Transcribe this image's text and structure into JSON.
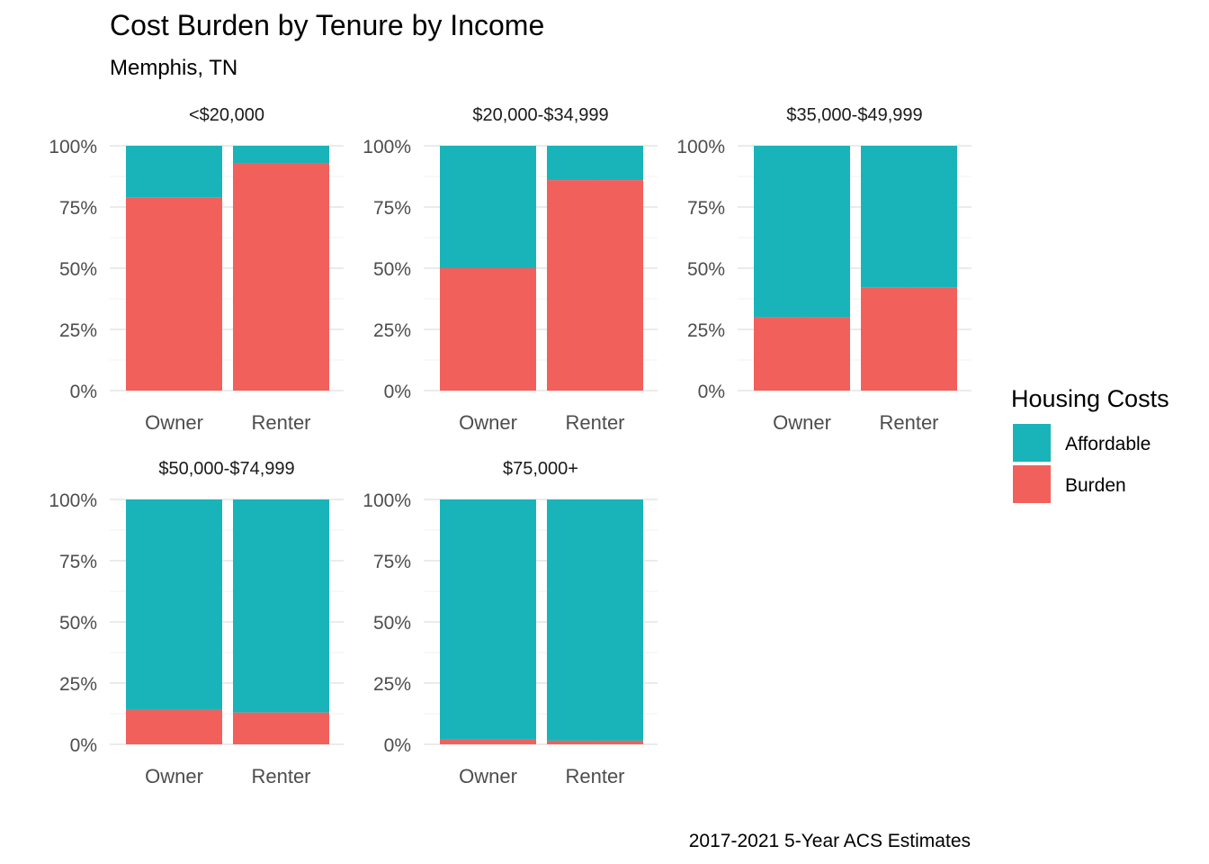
{
  "chart_data": {
    "type": "bar",
    "stacked": true,
    "title": "Cost Burden by Tenure by Income",
    "subtitle": "Memphis, TN",
    "caption": "2017-2021 5-Year ACS Estimates",
    "legend": {
      "title": "Housing Costs",
      "position": "right",
      "entries": [
        "Affordable",
        "Burden"
      ]
    },
    "colors": {
      "Affordable": "#19B4B9",
      "Burden": "#F2605C"
    },
    "categories": [
      "Owner",
      "Renter"
    ],
    "y_ticks": [
      "0%",
      "25%",
      "50%",
      "75%",
      "100%"
    ],
    "ylim": [
      0,
      100
    ],
    "grid": true,
    "panels": [
      {
        "title": "<$20,000",
        "series": [
          {
            "name": "Burden",
            "values": [
              79,
              93
            ]
          },
          {
            "name": "Affordable",
            "values": [
              21,
              7
            ]
          }
        ]
      },
      {
        "title": "$20,000-$34,999",
        "series": [
          {
            "name": "Burden",
            "values": [
              50,
              86
            ]
          },
          {
            "name": "Affordable",
            "values": [
              50,
              14
            ]
          }
        ]
      },
      {
        "title": "$35,000-$49,999",
        "series": [
          {
            "name": "Burden",
            "values": [
              30,
              42
            ]
          },
          {
            "name": "Affordable",
            "values": [
              70,
              58
            ]
          }
        ]
      },
      {
        "title": "$50,000-$74,999",
        "series": [
          {
            "name": "Burden",
            "values": [
              14,
              13
            ]
          },
          {
            "name": "Affordable",
            "values": [
              86,
              87
            ]
          }
        ]
      },
      {
        "title": "$75,000+",
        "series": [
          {
            "name": "Burden",
            "values": [
              2,
              1.5
            ]
          },
          {
            "name": "Affordable",
            "values": [
              98,
              98.5
            ]
          }
        ]
      }
    ]
  }
}
